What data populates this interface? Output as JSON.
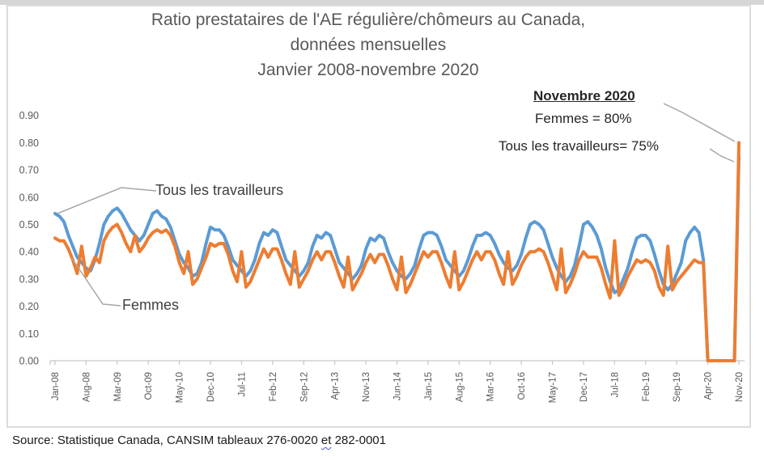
{
  "title": {
    "line1": "Ratio prestataires de l'AE régulière/chômeurs au Canada,",
    "line2": "données mensuelles",
    "line3": "Janvier 2008-novembre 2020"
  },
  "labels": {
    "all_workers": "Tous les travailleurs",
    "women": "Femmes"
  },
  "callout": {
    "heading": "Novembre 2020",
    "line_women": "Femmes = 80%",
    "line_all": "Tous les travailleurs= 75%"
  },
  "source": {
    "prefix": "Source: Statistique Canada, CANSIM tableaux 276-0020 ",
    "word": "et",
    "suffix": " 282-0001"
  },
  "chart_data": {
    "type": "line",
    "x_unit": "monthly, Jan-2008 to Nov-2020 (155 points)",
    "x_tick_every": 7,
    "x_tick_labels": [
      "Jan-08",
      "Aug-08",
      "Mar-09",
      "Oct-09",
      "May-10",
      "Dec-10",
      "Jul-11",
      "Feb-12",
      "Sep-12",
      "Apr-13",
      "Nov-13",
      "Jun-14",
      "Jan-15",
      "Aug-15",
      "Mar-16",
      "Oct-16",
      "May-17",
      "Dec-17",
      "Jul-18",
      "Feb-19",
      "Sep-19",
      "Apr-20",
      "Nov-20"
    ],
    "ylim": [
      0.0,
      0.9
    ],
    "y_tick_labels": [
      "0.00",
      "0.10",
      "0.20",
      "0.30",
      "0.40",
      "0.50",
      "0.60",
      "0.70",
      "0.80",
      "0.90"
    ],
    "grid": false,
    "legend": "direct labels on lines",
    "axis_color": "#c6c6c6",
    "tick_text_color": "#595959",
    "leader_color": "#a6a6a6",
    "series": [
      {
        "name": "Tous les travailleurs",
        "color": "#5B9BD5",
        "final_value_pct": "75%",
        "values": [
          0.54,
          0.53,
          0.51,
          0.46,
          0.42,
          0.38,
          0.36,
          0.34,
          0.33,
          0.37,
          0.43,
          0.5,
          0.53,
          0.55,
          0.56,
          0.54,
          0.51,
          0.48,
          0.46,
          0.44,
          0.46,
          0.5,
          0.54,
          0.55,
          0.53,
          0.52,
          0.49,
          0.44,
          0.39,
          0.36,
          0.34,
          0.31,
          0.32,
          0.36,
          0.43,
          0.49,
          0.48,
          0.48,
          0.46,
          0.42,
          0.37,
          0.35,
          0.33,
          0.31,
          0.33,
          0.37,
          0.43,
          0.47,
          0.46,
          0.48,
          0.47,
          0.42,
          0.37,
          0.35,
          0.33,
          0.31,
          0.33,
          0.36,
          0.42,
          0.46,
          0.45,
          0.47,
          0.46,
          0.41,
          0.36,
          0.34,
          0.32,
          0.3,
          0.32,
          0.35,
          0.41,
          0.45,
          0.44,
          0.46,
          0.45,
          0.4,
          0.36,
          0.33,
          0.31,
          0.3,
          0.32,
          0.35,
          0.41,
          0.46,
          0.47,
          0.47,
          0.46,
          0.42,
          0.37,
          0.35,
          0.33,
          0.31,
          0.33,
          0.37,
          0.42,
          0.46,
          0.46,
          0.47,
          0.46,
          0.43,
          0.39,
          0.36,
          0.34,
          0.33,
          0.35,
          0.39,
          0.45,
          0.5,
          0.51,
          0.5,
          0.48,
          0.43,
          0.38,
          0.34,
          0.31,
          0.29,
          0.31,
          0.35,
          0.42,
          0.5,
          0.51,
          0.49,
          0.46,
          0.41,
          0.34,
          0.29,
          0.25,
          0.26,
          0.3,
          0.34,
          0.4,
          0.45,
          0.46,
          0.46,
          0.44,
          0.39,
          0.33,
          0.28,
          0.26,
          0.28,
          0.32,
          0.36,
          0.44,
          0.47,
          0.49,
          0.47,
          0.37,
          0.0,
          0.0,
          0.0,
          0.0,
          0.0,
          0.0,
          0.0,
          0.75
        ]
      },
      {
        "name": "Femmes",
        "color": "#ED7D31",
        "final_value_pct": "80%",
        "values": [
          0.45,
          0.44,
          0.44,
          0.41,
          0.37,
          0.32,
          0.42,
          0.31,
          0.34,
          0.38,
          0.36,
          0.44,
          0.47,
          0.49,
          0.5,
          0.47,
          0.43,
          0.4,
          0.46,
          0.4,
          0.42,
          0.45,
          0.47,
          0.48,
          0.47,
          0.48,
          0.46,
          0.42,
          0.36,
          0.32,
          0.4,
          0.28,
          0.3,
          0.34,
          0.38,
          0.43,
          0.42,
          0.43,
          0.43,
          0.39,
          0.33,
          0.29,
          0.4,
          0.27,
          0.29,
          0.33,
          0.37,
          0.41,
          0.38,
          0.41,
          0.41,
          0.37,
          0.32,
          0.28,
          0.4,
          0.27,
          0.3,
          0.33,
          0.37,
          0.4,
          0.37,
          0.4,
          0.4,
          0.36,
          0.31,
          0.27,
          0.38,
          0.26,
          0.29,
          0.32,
          0.36,
          0.39,
          0.36,
          0.39,
          0.39,
          0.35,
          0.3,
          0.26,
          0.38,
          0.25,
          0.28,
          0.32,
          0.36,
          0.4,
          0.38,
          0.4,
          0.4,
          0.36,
          0.31,
          0.27,
          0.4,
          0.26,
          0.29,
          0.33,
          0.37,
          0.4,
          0.37,
          0.4,
          0.4,
          0.37,
          0.32,
          0.28,
          0.4,
          0.28,
          0.31,
          0.35,
          0.38,
          0.4,
          0.4,
          0.41,
          0.4,
          0.36,
          0.31,
          0.26,
          0.41,
          0.25,
          0.28,
          0.32,
          0.37,
          0.4,
          0.38,
          0.38,
          0.38,
          0.34,
          0.28,
          0.23,
          0.44,
          0.24,
          0.27,
          0.31,
          0.34,
          0.37,
          0.36,
          0.37,
          0.36,
          0.33,
          0.27,
          0.24,
          0.42,
          0.26,
          0.29,
          0.31,
          0.33,
          0.35,
          0.37,
          0.36,
          0.36,
          0.0,
          0.0,
          0.0,
          0.0,
          0.0,
          0.0,
          0.0,
          0.8
        ]
      }
    ]
  }
}
